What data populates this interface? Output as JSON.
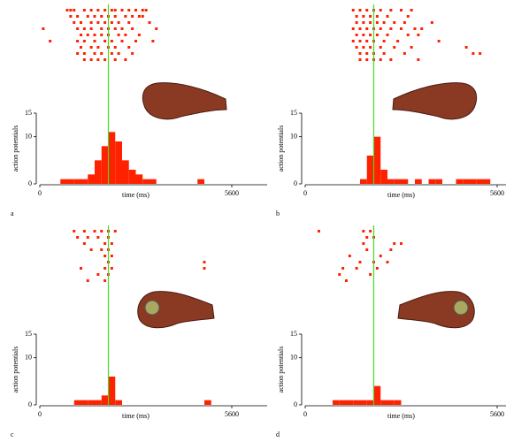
{
  "chart_data": [
    {
      "type": "histogram",
      "label": "a",
      "xlabel": "time (ms)",
      "ylabel": "action potentials",
      "xlim": [
        0,
        5600
      ],
      "xticks": [
        0,
        5600
      ],
      "ylim": [
        0,
        15
      ],
      "yticks": [
        0,
        10,
        15
      ],
      "color": "#ff2200",
      "marker_color": "#44dd22",
      "marker_x": 2000,
      "bins": [
        0,
        200,
        400,
        600,
        800,
        1000,
        1200,
        1400,
        1600,
        1800,
        2000,
        2200,
        2400,
        2600,
        2800,
        3000,
        3200,
        3400,
        3600,
        3800,
        4000,
        4200,
        4400,
        4600,
        4800,
        5000,
        5200,
        5400,
        5600
      ],
      "values": [
        0,
        0,
        0,
        1,
        1,
        1,
        1,
        2,
        5,
        8,
        11,
        9,
        5,
        3,
        2,
        1,
        1,
        0,
        0,
        0,
        0,
        0,
        0,
        1,
        0,
        0,
        0,
        0
      ],
      "raster": [
        [
          800,
          900,
          1000,
          1300,
          1500,
          1700,
          1900,
          2100,
          2200,
          2400,
          2600,
          2800,
          3000,
          3100
        ],
        [
          900,
          1100,
          1400,
          1600,
          1800,
          2000,
          2200,
          2500,
          2700,
          2900,
          3000
        ],
        [
          1000,
          1200,
          1500,
          1700,
          1900,
          2100,
          2300,
          2600,
          3200
        ],
        [
          100,
          1100,
          1300,
          1500,
          1800,
          2000,
          2200,
          2400,
          2700,
          3400
        ],
        [
          1200,
          1400,
          1600,
          1800,
          2000,
          2300,
          2500,
          2900
        ],
        [
          300,
          1100,
          1300,
          1600,
          1900,
          2100,
          2400,
          2800,
          3300
        ],
        [
          1200,
          1500,
          1700,
          2000,
          2200,
          2600
        ],
        [
          1100,
          1300,
          1600,
          1800,
          2100,
          2300,
          2700
        ],
        [
          1300,
          1500,
          1700,
          1900,
          2200,
          2500
        ]
      ]
    },
    {
      "type": "histogram",
      "label": "b",
      "xlabel": "time (ms)",
      "ylabel": "action potentials",
      "xlim": [
        0,
        5600
      ],
      "xticks": [
        0,
        5600
      ],
      "ylim": [
        0,
        15
      ],
      "yticks": [
        0,
        10,
        15
      ],
      "color": "#ff2200",
      "marker_color": "#44dd22",
      "marker_x": 2000,
      "bins": [
        0,
        200,
        400,
        600,
        800,
        1000,
        1200,
        1400,
        1600,
        1800,
        2000,
        2200,
        2400,
        2600,
        2800,
        3000,
        3200,
        3400,
        3600,
        3800,
        4000,
        4200,
        4400,
        4600,
        4800,
        5000,
        5200,
        5400,
        5600
      ],
      "values": [
        0,
        0,
        0,
        0,
        0,
        0,
        0,
        0,
        1,
        6,
        10,
        3,
        1,
        1,
        1,
        0,
        1,
        0,
        1,
        1,
        0,
        0,
        1,
        1,
        1,
        1,
        1,
        0
      ],
      "raster": [
        [
          1400,
          1600,
          1800,
          2000,
          2200,
          2500,
          2800,
          3100
        ],
        [
          1500,
          1700,
          1900,
          2100,
          2400,
          3000
        ],
        [
          1500,
          1700,
          1900,
          2100,
          2300,
          2600,
          2900,
          3700
        ],
        [
          1400,
          1600,
          1800,
          2000,
          2200,
          2500,
          2800,
          3200,
          3400
        ],
        [
          1500,
          1700,
          1900,
          2100,
          2400,
          3000,
          3300
        ],
        [
          1400,
          1600,
          1800,
          2000,
          2300,
          2700,
          3900
        ],
        [
          1500,
          1700,
          1900,
          2200,
          2600,
          3100,
          4700
        ],
        [
          1600,
          1800,
          2000,
          2300,
          2900,
          4900,
          5100
        ],
        [
          1600,
          1800,
          2000,
          2200,
          2500,
          3300
        ]
      ]
    },
    {
      "type": "histogram",
      "label": "c",
      "xlabel": "time (ms)",
      "ylabel": "action potentials",
      "xlim": [
        0,
        5600
      ],
      "xticks": [
        0,
        5600
      ],
      "ylim": [
        0,
        15
      ],
      "yticks": [
        0,
        10,
        15
      ],
      "color": "#ff2200",
      "marker_color": "#44dd22",
      "marker_x": 2000,
      "bins": [
        0,
        200,
        400,
        600,
        800,
        1000,
        1200,
        1400,
        1600,
        1800,
        2000,
        2200,
        2400,
        2600,
        2800,
        3000,
        3200,
        3400,
        3600,
        3800,
        4000,
        4200,
        4400,
        4600,
        4800,
        5000,
        5200,
        5400,
        5600
      ],
      "values": [
        0,
        0,
        0,
        0,
        0,
        1,
        1,
        1,
        1,
        2,
        6,
        1,
        0,
        0,
        0,
        0,
        0,
        0,
        0,
        0,
        0,
        0,
        0,
        0,
        1,
        0,
        0,
        0
      ],
      "raster": [
        [
          1000,
          1300,
          1600,
          1800,
          2000,
          2200
        ],
        [
          1100,
          1400,
          1700,
          2000
        ],
        [
          1300,
          1900,
          2100
        ],
        [
          1500,
          1800,
          2000
        ],
        [
          1900,
          2100
        ],
        [
          2000,
          4800
        ],
        [
          1200,
          1900,
          2100,
          4800
        ],
        [
          1700,
          2000
        ],
        [
          1400,
          1900
        ]
      ]
    },
    {
      "type": "histogram",
      "label": "d",
      "xlabel": "time (ms)",
      "ylabel": "action potentials",
      "xlim": [
        0,
        5600
      ],
      "xticks": [
        0,
        5600
      ],
      "ylim": [
        0,
        15
      ],
      "yticks": [
        0,
        10,
        15
      ],
      "color": "#ff2200",
      "marker_color": "#44dd22",
      "marker_x": 2000,
      "bins": [
        0,
        200,
        400,
        600,
        800,
        1000,
        1200,
        1400,
        1600,
        1800,
        2000,
        2200,
        2400,
        2600,
        2800,
        3000,
        3200,
        3400,
        3600,
        3800,
        4000,
        4200,
        4400,
        4600,
        4800,
        5000,
        5200,
        5400,
        5600
      ],
      "values": [
        0,
        0,
        0,
        0,
        1,
        1,
        1,
        1,
        1,
        1,
        4,
        1,
        1,
        1,
        0,
        0,
        0,
        0,
        0,
        0,
        0,
        0,
        0,
        0,
        0,
        0,
        0,
        0
      ],
      "raster": [
        [
          400,
          1700,
          1900
        ],
        [
          1800,
          2000
        ],
        [
          1700,
          2600,
          2800
        ],
        [
          1800,
          2500
        ],
        [
          1300,
          2200
        ],
        [
          1600,
          2000,
          2400
        ],
        [
          1100,
          1500,
          2100
        ],
        [
          1000,
          1900
        ],
        [
          1200
        ]
      ]
    }
  ]
}
